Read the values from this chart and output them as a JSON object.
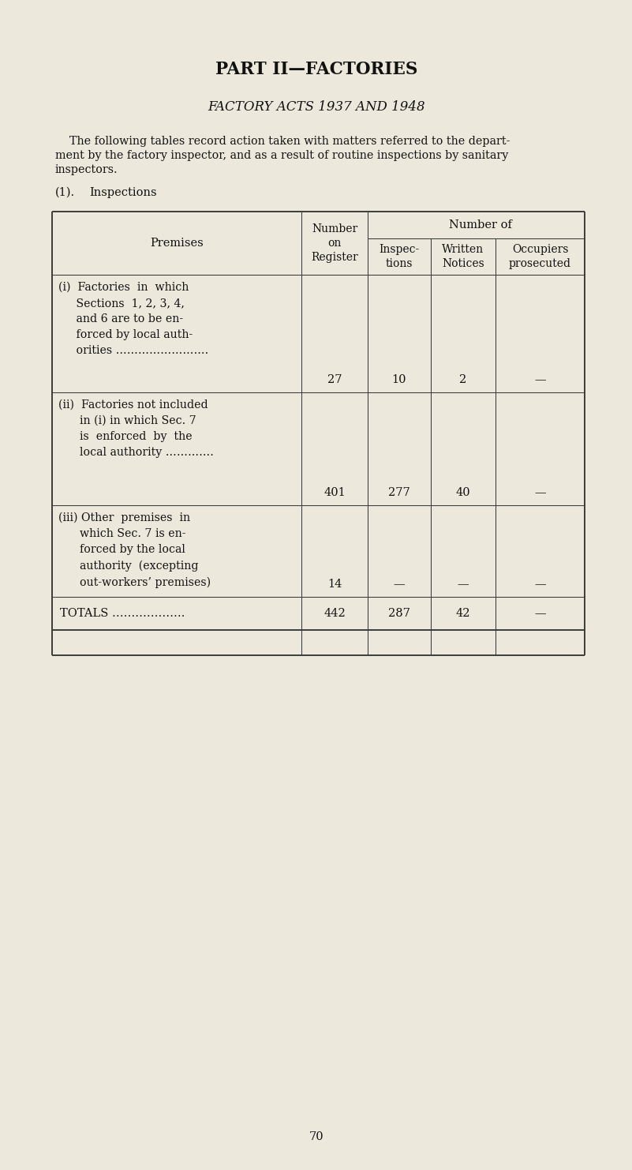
{
  "bg_color": "#ede8dc",
  "title": "PART II—FACTORIES",
  "subtitle": "FACTORY ACTS 1937 AND 1948",
  "para1": "    The following tables record action taken with matters referred to the depart-",
  "para2": "ment by the factory inspector, and as a result of routine inspections by sanitary",
  "para3": "inspectors.",
  "section_label_num": "(1).",
  "section_label_text": "Inspections",
  "col_header_number_of": "Number of",
  "col_header_premises": "Premises",
  "col_header_register": "Number\non\nRegister",
  "col_header_inspec": "Inspec-\ntions",
  "col_header_written": "Written\nNotices",
  "col_header_prosecuted": "Occupiers\nprosecuted",
  "row_i_lines": [
    "(i)  Factories  in  which",
    "     Sections  1, 2, 3, 4,",
    "     and 6 are to be en-",
    "     forced by local auth-",
    "     orities ……………………."
  ],
  "row_i_reg": "27",
  "row_i_ins": "10",
  "row_i_wri": "2",
  "row_i_pro": "—",
  "row_ii_lines": [
    "(ii)  Factories not included",
    "      in (i) in which Sec. 7",
    "      is  enforced  by  the",
    "      local authority …………."
  ],
  "row_ii_reg": "401",
  "row_ii_ins": "277",
  "row_ii_wri": "40",
  "row_ii_pro": "—",
  "row_iii_lines": [
    "(iii) Other  premises  in",
    "      which Sec. 7 is en-",
    "      forced by the local",
    "      authority  (excepting",
    "      out-workers’ premises)"
  ],
  "row_iii_reg": "14",
  "row_iii_ins": "—",
  "row_iii_wri": "—",
  "row_iii_pro": "—",
  "totals_label": "TOTALS ……………….",
  "tot_reg": "442",
  "tot_ins": "287",
  "tot_wri": "42",
  "tot_pro": "—",
  "page_number": "70",
  "text_color": "#111111"
}
